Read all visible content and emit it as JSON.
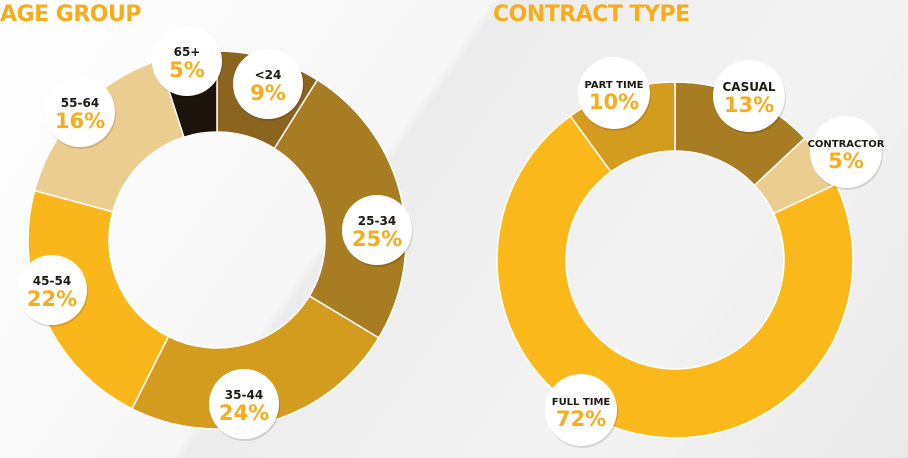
{
  "colors": {
    "accent": "#f5ad1b",
    "label_dark": "#1e1a14",
    "bubble": "#ffffff"
  },
  "chart_data": [
    {
      "type": "pie",
      "title": "AGE GROUP",
      "categories": [
        "<24",
        "25-34",
        "35-44",
        "45-54",
        "55-64",
        "65+"
      ],
      "values": [
        9,
        25,
        24,
        22,
        16,
        5
      ],
      "labels": [
        "9%",
        "25%",
        "24%",
        "22%",
        "16%",
        "5%"
      ],
      "colors": [
        "#8b6420",
        "#a77c23",
        "#d39c1f",
        "#f9b71b",
        "#ebcd8f",
        "#1c130b"
      ],
      "donut": true,
      "legend": "none"
    },
    {
      "type": "pie",
      "title": "CONTRACT TYPE",
      "categories": [
        "CASUAL",
        "CONTRACTOR",
        "FULL TIME",
        "PART TIME"
      ],
      "values": [
        13,
        5,
        72,
        10
      ],
      "labels": [
        "13%",
        "5%",
        "72%",
        "10%"
      ],
      "colors": [
        "#a77c23",
        "#ebcd8f",
        "#fbb81a",
        "#d39c1f"
      ],
      "donut": true,
      "legend": "none"
    }
  ]
}
